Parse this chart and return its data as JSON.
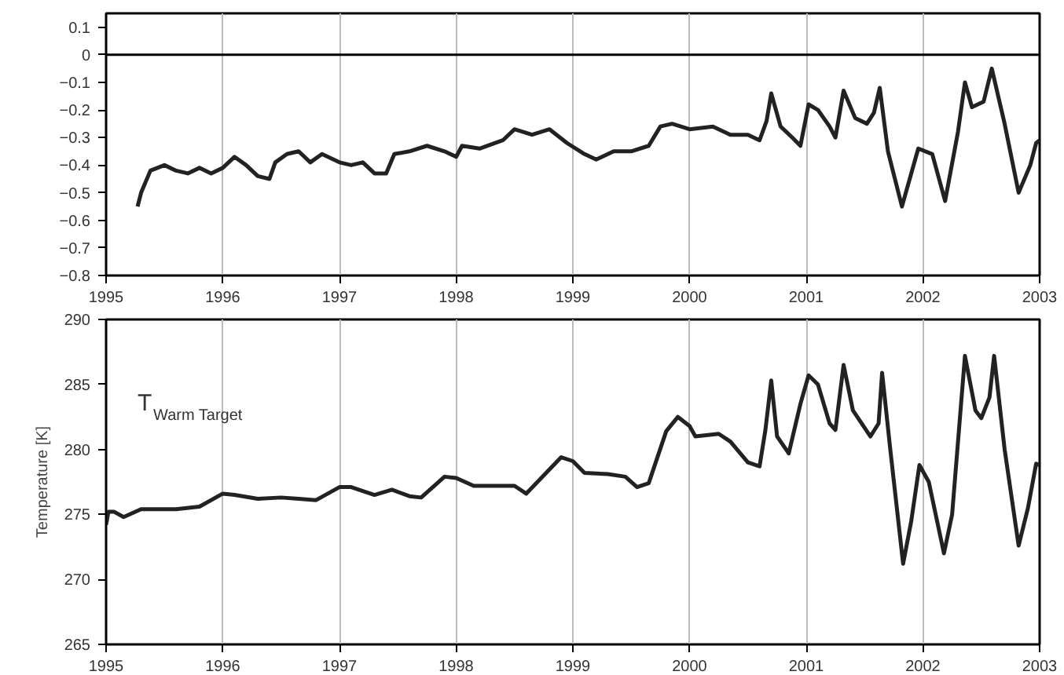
{
  "chart_data": [
    {
      "type": "line",
      "grid": "x",
      "xlim": [
        1995,
        2003
      ],
      "ylim": [
        -0.8,
        0.15
      ],
      "xticks": [
        1995,
        1996,
        1997,
        1998,
        1999,
        2000,
        2001,
        2002,
        2003
      ],
      "yticks": [
        0.1,
        0,
        -0.1,
        -0.2,
        -0.3,
        -0.4,
        -0.5,
        -0.6,
        -0.7,
        -0.8
      ],
      "ref_lines": [
        {
          "axis": "y",
          "value": 0,
          "color": "#000000"
        }
      ],
      "x": [
        1995.27,
        1995.3,
        1995.38,
        1995.5,
        1995.6,
        1995.7,
        1995.8,
        1995.9,
        1996.0,
        1996.1,
        1996.2,
        1996.3,
        1996.4,
        1996.45,
        1996.55,
        1996.65,
        1996.75,
        1996.85,
        1997.0,
        1997.1,
        1997.2,
        1997.3,
        1997.4,
        1997.47,
        1997.6,
        1997.75,
        1997.9,
        1998.0,
        1998.05,
        1998.2,
        1998.4,
        1998.5,
        1998.65,
        1998.8,
        1998.95,
        1999.1,
        1999.2,
        1999.35,
        1999.5,
        1999.65,
        1999.75,
        1999.85,
        2000.0,
        2000.2,
        2000.35,
        2000.5,
        2000.6,
        2000.66,
        2000.7,
        2000.78,
        2000.88,
        2000.95,
        2001.02,
        2001.1,
        2001.2,
        2001.25,
        2001.32,
        2001.42,
        2001.52,
        2001.58,
        2001.63,
        2001.7,
        2001.82,
        2001.96,
        2002.08,
        2002.19,
        2002.3,
        2002.36,
        2002.42,
        2002.52,
        2002.59,
        2002.7,
        2002.82,
        2002.92,
        2002.97,
        2003.0
      ],
      "series": [
        {
          "color": "#222222",
          "values": [
            -0.55,
            -0.5,
            -0.42,
            -0.4,
            -0.42,
            -0.43,
            -0.41,
            -0.43,
            -0.41,
            -0.37,
            -0.4,
            -0.44,
            -0.45,
            -0.39,
            -0.36,
            -0.35,
            -0.39,
            -0.36,
            -0.39,
            -0.4,
            -0.39,
            -0.43,
            -0.43,
            -0.36,
            -0.35,
            -0.33,
            -0.35,
            -0.37,
            -0.33,
            -0.34,
            -0.31,
            -0.27,
            -0.29,
            -0.27,
            -0.32,
            -0.36,
            -0.38,
            -0.35,
            -0.35,
            -0.33,
            -0.26,
            -0.25,
            -0.27,
            -0.26,
            -0.29,
            -0.29,
            -0.31,
            -0.24,
            -0.14,
            -0.26,
            -0.3,
            -0.33,
            -0.18,
            -0.2,
            -0.26,
            -0.3,
            -0.13,
            -0.23,
            -0.25,
            -0.21,
            -0.12,
            -0.35,
            -0.55,
            -0.34,
            -0.36,
            -0.53,
            -0.28,
            -0.1,
            -0.19,
            -0.17,
            -0.05,
            -0.25,
            -0.5,
            -0.4,
            -0.32,
            -0.31
          ]
        }
      ]
    },
    {
      "type": "line",
      "grid": "x",
      "xlim": [
        1995,
        2003
      ],
      "ylim": [
        265,
        290
      ],
      "ylabel": "Temperature [K]",
      "xticks": [
        1995,
        1996,
        1997,
        1998,
        1999,
        2000,
        2001,
        2002,
        2003
      ],
      "yticks": [
        265,
        270,
        275,
        280,
        285,
        290
      ],
      "annotations": [
        "T$_{Warm Target}$"
      ],
      "x": [
        1995.0,
        1995.02,
        1995.07,
        1995.15,
        1995.3,
        1995.6,
        1995.8,
        1996.0,
        1996.1,
        1996.3,
        1996.5,
        1996.65,
        1996.8,
        1997.0,
        1997.1,
        1997.3,
        1997.45,
        1997.6,
        1997.7,
        1997.9,
        1998.0,
        1998.15,
        1998.3,
        1998.5,
        1998.6,
        1998.75,
        1998.9,
        1999.0,
        1999.1,
        1999.3,
        1999.45,
        1999.55,
        1999.65,
        1999.8,
        1999.9,
        2000.0,
        2000.05,
        2000.25,
        2000.35,
        2000.5,
        2000.6,
        2000.65,
        2000.7,
        2000.75,
        2000.85,
        2000.95,
        2001.02,
        2001.1,
        2001.2,
        2001.25,
        2001.32,
        2001.4,
        2001.55,
        2001.62,
        2001.65,
        2001.72,
        2001.83,
        2001.9,
        2001.97,
        2002.05,
        2002.18,
        2002.25,
        2002.36,
        2002.45,
        2002.5,
        2002.57,
        2002.61,
        2002.7,
        2002.82,
        2002.9,
        2002.97,
        2003.0
      ],
      "series": [
        {
          "color": "#222222",
          "values": [
            274.2,
            275.2,
            275.2,
            274.8,
            275.4,
            275.4,
            275.6,
            276.6,
            276.5,
            276.2,
            276.3,
            276.2,
            276.1,
            277.1,
            277.1,
            276.5,
            276.9,
            276.4,
            276.3,
            277.9,
            277.8,
            277.2,
            277.2,
            277.2,
            276.6,
            278.0,
            279.4,
            279.1,
            278.2,
            278.1,
            277.9,
            277.1,
            277.4,
            281.4,
            282.5,
            281.8,
            281.0,
            281.2,
            280.6,
            279.0,
            278.7,
            281.5,
            285.3,
            281.0,
            279.7,
            283.5,
            285.7,
            285.0,
            282.0,
            281.5,
            286.5,
            283.0,
            281.0,
            282.0,
            285.9,
            280.0,
            271.2,
            274.5,
            278.8,
            277.5,
            272.0,
            275.0,
            287.2,
            283.0,
            282.4,
            284.0,
            287.2,
            280.0,
            272.6,
            275.5,
            278.9,
            278.8
          ]
        }
      ]
    }
  ]
}
